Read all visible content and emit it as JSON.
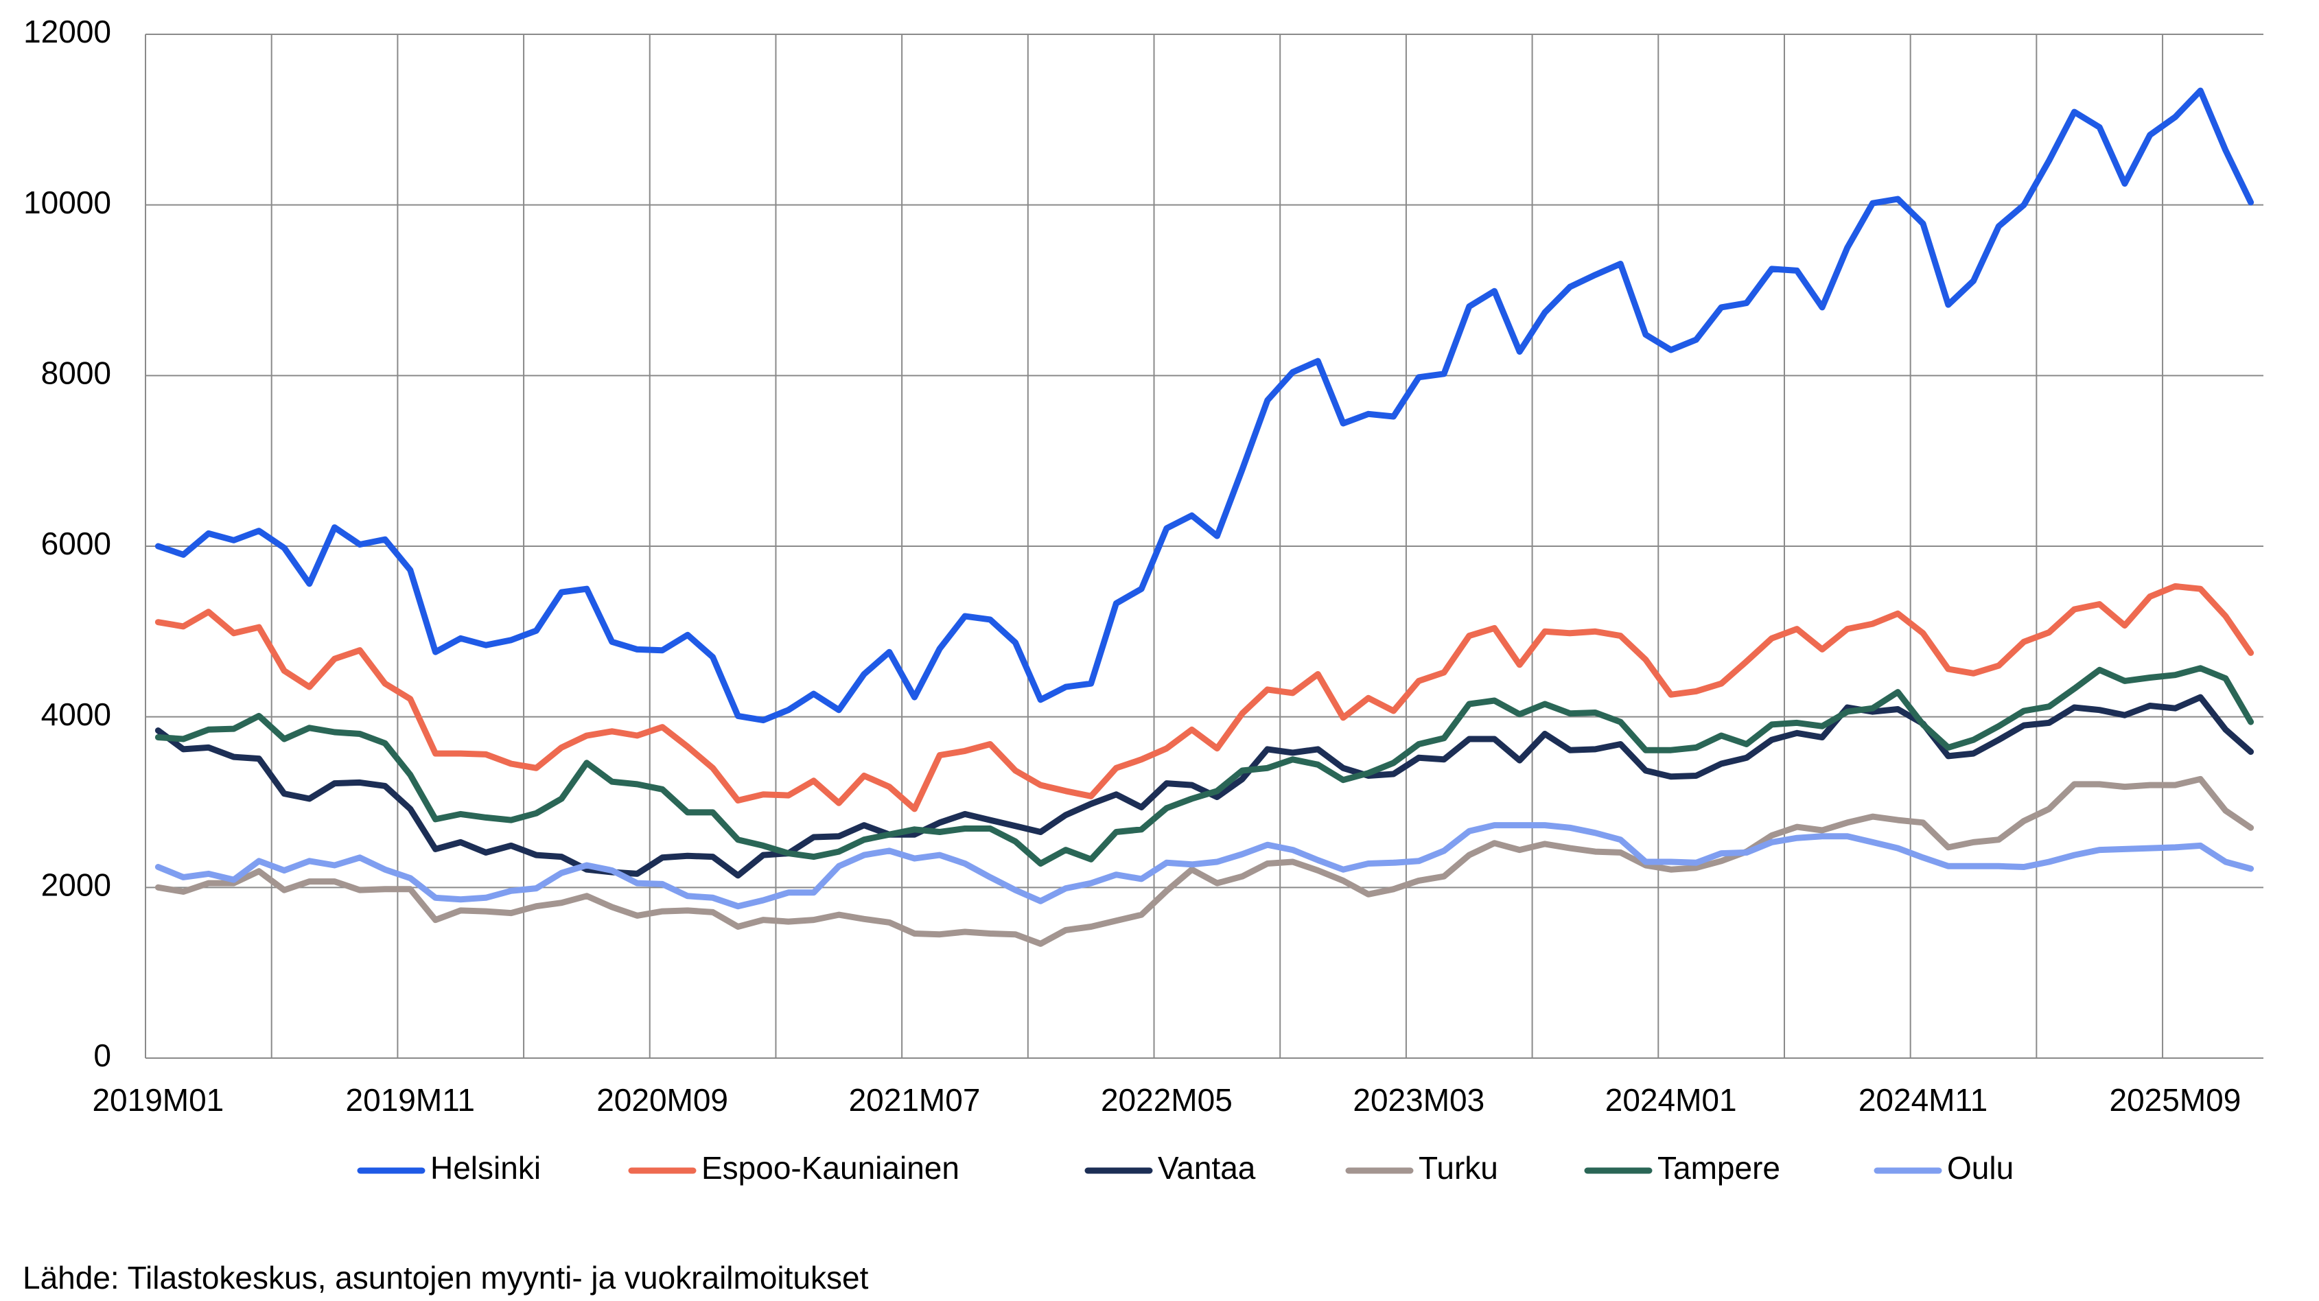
{
  "chart_data": {
    "type": "line",
    "source": "Lähde: Tilastokeskus, asuntojen myynti- ja vuokrailmoitukset",
    "categories": [
      "2019M01",
      null,
      null,
      null,
      null,
      null,
      null,
      null,
      null,
      null,
      "2019M11",
      null,
      null,
      null,
      null,
      null,
      null,
      null,
      null,
      null,
      "2020M09",
      null,
      null,
      null,
      null,
      null,
      null,
      null,
      null,
      null,
      "2021M07",
      null,
      null,
      null,
      null,
      null,
      null,
      null,
      null,
      null,
      "2022M05",
      null,
      null,
      null,
      null,
      null,
      null,
      null,
      null,
      null,
      "2023M03",
      null,
      null,
      null,
      null,
      null,
      null,
      null,
      null,
      null,
      "2024M01",
      null,
      null,
      null,
      null,
      null,
      null,
      null,
      null,
      null,
      "2024M11",
      null,
      null,
      null,
      null,
      null,
      null,
      null,
      null,
      null,
      "2025M09",
      null,
      null,
      null
    ],
    "ylim": [
      0,
      12000
    ],
    "yticks": [
      0,
      2000,
      4000,
      6000,
      8000,
      10000,
      12000
    ],
    "grid": true,
    "legend": "bottom",
    "series": [
      {
        "name": "Helsinki",
        "color": "#1f5ae6",
        "values": [
          6000,
          5900,
          6150,
          6070,
          6180,
          5980,
          5560,
          6220,
          6020,
          6080,
          5720,
          4760,
          4920,
          4840,
          4900,
          5010,
          5460,
          5500,
          4880,
          4790,
          4780,
          4960,
          4700,
          4010,
          3960,
          4080,
          4270,
          4080,
          4500,
          4760,
          4230,
          4800,
          5180,
          5140,
          4870,
          4200,
          4350,
          4390,
          5330,
          5500,
          6210,
          6360,
          6120,
          6900,
          7710,
          8040,
          8170,
          7440,
          7550,
          7520,
          7980,
          8020,
          8810,
          8990,
          8280,
          8740,
          9040,
          9180,
          9310,
          8480,
          8300,
          8420,
          8800,
          8850,
          9250,
          9230,
          8800,
          9500,
          10020,
          10070,
          9780,
          8830,
          9110,
          9750,
          10000,
          10520,
          11090,
          10910,
          10250,
          10820,
          11030,
          11340,
          10640,
          10030
        ]
      },
      {
        "name": "Espoo-Kauniainen",
        "color": "#ee6a50",
        "values": [
          5110,
          5060,
          5230,
          4980,
          5050,
          4540,
          4350,
          4680,
          4780,
          4390,
          4210,
          3570,
          3570,
          3560,
          3450,
          3400,
          3640,
          3780,
          3830,
          3780,
          3880,
          3650,
          3400,
          3020,
          3090,
          3080,
          3250,
          2990,
          3310,
          3180,
          2920,
          3550,
          3600,
          3680,
          3370,
          3200,
          3130,
          3070,
          3400,
          3500,
          3630,
          3850,
          3630,
          4040,
          4320,
          4280,
          4500,
          3990,
          4220,
          4070,
          4420,
          4520,
          4950,
          5040,
          4610,
          5000,
          4980,
          5000,
          4950,
          4670,
          4260,
          4300,
          4390,
          4650,
          4920,
          5030,
          4790,
          5030,
          5090,
          5210,
          4980,
          4560,
          4510,
          4600,
          4880,
          4990,
          5260,
          5320,
          5070,
          5410,
          5530,
          5500,
          5180,
          4750
        ]
      },
      {
        "name": "Vantaa",
        "color": "#1c2e55",
        "values": [
          3840,
          3620,
          3640,
          3530,
          3510,
          3100,
          3040,
          3220,
          3230,
          3190,
          2920,
          2450,
          2530,
          2410,
          2490,
          2380,
          2360,
          2210,
          2180,
          2160,
          2350,
          2370,
          2360,
          2140,
          2380,
          2400,
          2590,
          2600,
          2730,
          2620,
          2620,
          2760,
          2860,
          2790,
          2720,
          2650,
          2850,
          2980,
          3090,
          2940,
          3220,
          3200,
          3060,
          3270,
          3620,
          3580,
          3620,
          3400,
          3310,
          3330,
          3520,
          3500,
          3740,
          3740,
          3490,
          3800,
          3610,
          3620,
          3680,
          3370,
          3300,
          3310,
          3450,
          3520,
          3730,
          3810,
          3760,
          4110,
          4060,
          4090,
          3920,
          3540,
          3570,
          3730,
          3900,
          3930,
          4110,
          4080,
          4020,
          4130,
          4100,
          4230,
          3850,
          3590
        ]
      },
      {
        "name": "Turku",
        "color": "#a39590",
        "values": [
          2000,
          1950,
          2050,
          2050,
          2190,
          1970,
          2070,
          2070,
          1970,
          1980,
          1980,
          1620,
          1730,
          1720,
          1700,
          1780,
          1820,
          1900,
          1770,
          1670,
          1720,
          1730,
          1710,
          1540,
          1620,
          1600,
          1620,
          1680,
          1630,
          1590,
          1460,
          1450,
          1480,
          1460,
          1450,
          1340,
          1500,
          1540,
          1610,
          1680,
          1960,
          2210,
          2050,
          2130,
          2280,
          2300,
          2200,
          2080,
          1920,
          1980,
          2080,
          2130,
          2380,
          2520,
          2440,
          2510,
          2460,
          2420,
          2410,
          2260,
          2210,
          2230,
          2310,
          2420,
          2610,
          2710,
          2670,
          2760,
          2830,
          2790,
          2760,
          2470,
          2530,
          2560,
          2780,
          2920,
          3210,
          3210,
          3180,
          3200,
          3200,
          3270,
          2900,
          2700
        ]
      },
      {
        "name": "Tampere",
        "color": "#2a6656",
        "values": [
          3760,
          3740,
          3850,
          3860,
          4010,
          3740,
          3870,
          3820,
          3800,
          3690,
          3320,
          2800,
          2860,
          2820,
          2790,
          2870,
          3040,
          3460,
          3240,
          3210,
          3150,
          2880,
          2880,
          2560,
          2490,
          2400,
          2360,
          2420,
          2560,
          2620,
          2680,
          2650,
          2690,
          2690,
          2540,
          2280,
          2440,
          2330,
          2650,
          2680,
          2930,
          3040,
          3130,
          3370,
          3400,
          3500,
          3440,
          3260,
          3340,
          3460,
          3680,
          3750,
          4150,
          4190,
          4030,
          4150,
          4040,
          4050,
          3940,
          3610,
          3610,
          3640,
          3780,
          3680,
          3910,
          3930,
          3890,
          4060,
          4100,
          4290,
          3910,
          3640,
          3730,
          3890,
          4070,
          4120,
          4330,
          4550,
          4420,
          4460,
          4490,
          4570,
          4450,
          3940
        ]
      },
      {
        "name": "Oulu",
        "color": "#7f9ef0",
        "values": [
          2240,
          2120,
          2160,
          2090,
          2310,
          2200,
          2310,
          2260,
          2350,
          2210,
          2110,
          1880,
          1860,
          1880,
          1960,
          1990,
          2170,
          2260,
          2200,
          2050,
          2040,
          1900,
          1880,
          1780,
          1850,
          1940,
          1940,
          2250,
          2380,
          2430,
          2340,
          2380,
          2280,
          2120,
          1970,
          1840,
          1990,
          2050,
          2150,
          2100,
          2290,
          2270,
          2300,
          2390,
          2500,
          2440,
          2320,
          2210,
          2280,
          2290,
          2310,
          2430,
          2660,
          2730,
          2730,
          2730,
          2700,
          2640,
          2560,
          2300,
          2300,
          2290,
          2400,
          2410,
          2530,
          2580,
          2600,
          2600,
          2530,
          2460,
          2350,
          2250,
          2250,
          2250,
          2240,
          2300,
          2380,
          2440,
          2450,
          2460,
          2470,
          2490,
          2300,
          2220
        ]
      }
    ]
  }
}
